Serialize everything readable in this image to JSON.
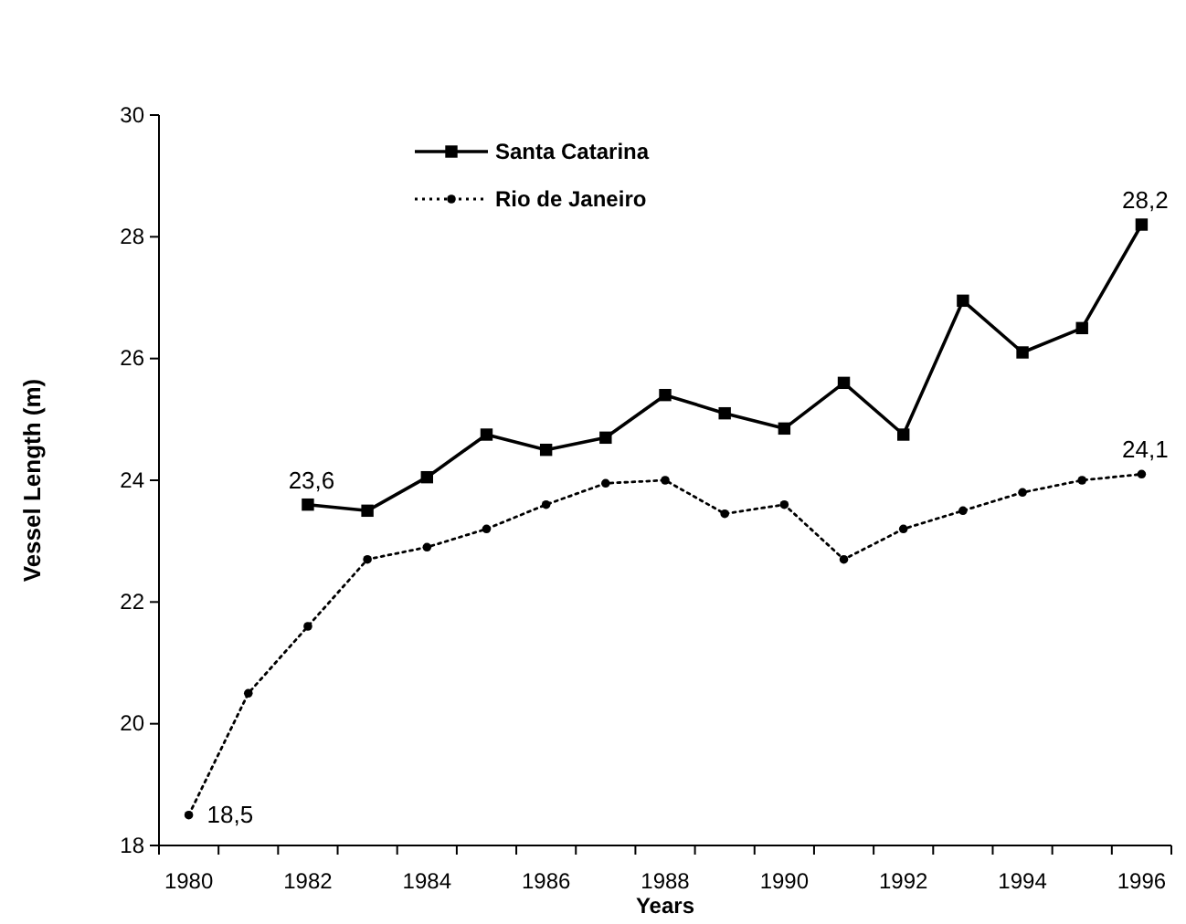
{
  "chart_data": {
    "type": "line",
    "xlabel": "Years",
    "ylabel": "Vessel Length (m)",
    "categories": [
      "1980",
      null,
      "1982",
      null,
      "1984",
      null,
      "1986",
      null,
      "1988",
      null,
      "1990",
      null,
      "1992",
      null,
      "1994",
      null,
      "1996"
    ],
    "series": [
      {
        "name": "Santa Catarina",
        "color": "#000000",
        "marker": "square",
        "line_style": "solid",
        "values": [
          null,
          null,
          23.6,
          23.5,
          24.05,
          24.75,
          24.5,
          24.7,
          25.4,
          25.1,
          24.85,
          25.6,
          24.75,
          26.95,
          26.1,
          26.5,
          28.2
        ],
        "value_labels": [
          null,
          null,
          "23,6",
          null,
          null,
          null,
          null,
          null,
          null,
          null,
          null,
          null,
          null,
          null,
          null,
          null,
          "28,2"
        ]
      },
      {
        "name": "Rio de Janeiro",
        "color": "#000000",
        "marker": "circle",
        "line_style": "dotted",
        "values": [
          18.5,
          20.5,
          21.6,
          22.7,
          22.9,
          23.2,
          23.6,
          23.95,
          24.0,
          23.45,
          23.6,
          22.7,
          23.2,
          23.5,
          23.8,
          24.0,
          24.1
        ],
        "value_labels": [
          "18,5",
          null,
          null,
          null,
          null,
          null,
          null,
          null,
          null,
          null,
          null,
          null,
          null,
          null,
          null,
          null,
          "24,1"
        ]
      }
    ],
    "ylim": [
      18,
      30
    ],
    "yticks": [
      18,
      20,
      22,
      24,
      26,
      28,
      30
    ],
    "grid": false,
    "legend": "top"
  }
}
